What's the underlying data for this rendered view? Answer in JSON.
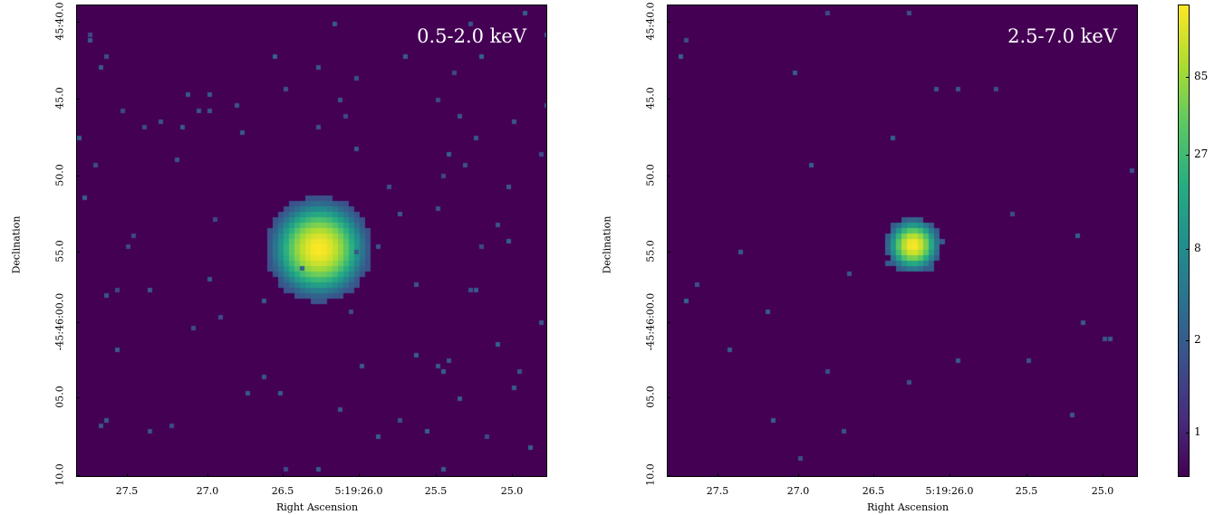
{
  "panels": [
    {
      "band_label": "0.5-2.0 keV",
      "xlabel": "Right Ascension",
      "ylabel": "Declination",
      "xticks": [
        "27.5",
        "27.0",
        "26.5",
        "5:19:26.0",
        "25.5",
        "25.0"
      ],
      "yticks": [
        "45:40.0",
        "45.0",
        "50.0",
        "55.0",
        "-45:46:00.0",
        "05.0",
        "10.0"
      ]
    },
    {
      "band_label": "2.5-7.0 keV",
      "xlabel": "Right Ascension",
      "ylabel": "Declination",
      "xticks": [
        "27.5",
        "27.0",
        "26.5",
        "5:19:26.0",
        "25.5",
        "25.0"
      ],
      "yticks": [
        "45:40.0",
        "45.0",
        "50.0",
        "55.0",
        "-45:46:00.0",
        "05.0",
        "10.0"
      ]
    }
  ],
  "colorbar": {
    "colormap": "viridis",
    "ticks": [
      "85",
      "27",
      "8",
      "2",
      "1"
    ]
  },
  "colors": {
    "background": "#440154",
    "peak": "#fde725"
  }
}
